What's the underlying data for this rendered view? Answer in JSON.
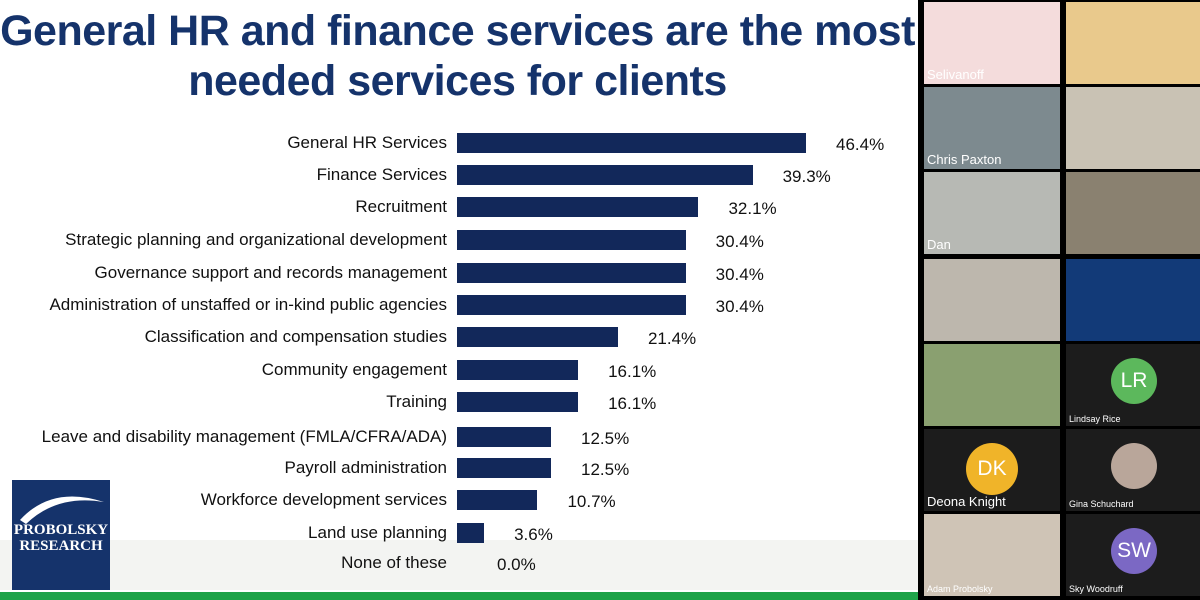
{
  "chart_data": {
    "type": "bar",
    "orientation": "horizontal",
    "title": "General HR and finance services are the most needed services for clients",
    "categories": [
      "General HR Services",
      "Finance Services",
      "Recruitment",
      "Strategic planning and organizational development",
      "Governance support and records management",
      "Administration of unstaffed or in-kind public agencies",
      "Classification and compensation studies",
      "Community engagement",
      "Training",
      "Leave and disability management (FMLA/CFRA/ADA)",
      "Payroll administration",
      "Workforce development services",
      "Land use planning",
      "None of these"
    ],
    "values": [
      46.4,
      39.3,
      32.1,
      30.4,
      30.4,
      30.4,
      21.4,
      16.1,
      16.1,
      12.5,
      12.5,
      10.7,
      3.6,
      0.0
    ],
    "value_labels": [
      "46.4%",
      "39.3%",
      "32.1%",
      "30.4%",
      "30.4%",
      "30.4%",
      "21.4%",
      "16.1%",
      "16.1%",
      "12.5%",
      "12.5%",
      "10.7%",
      "3.6%",
      "0.0%"
    ],
    "unit": "%",
    "xlim": [
      0,
      46.4
    ],
    "grid": false,
    "bar_color": "#12285a"
  },
  "logo": {
    "line1": "PROBOLSKY",
    "line2": "RESEARCH"
  },
  "participants": [
    {
      "name": "Selivanoff",
      "bg": "#f4dcdc"
    },
    {
      "name": "",
      "bg": "#e9c98c"
    },
    {
      "name": "Chris Paxton",
      "bg": "#7d8a8f"
    },
    {
      "name": "",
      "bg": "#c9c2b4"
    },
    {
      "name": "Dan",
      "bg": "#b7b9b4"
    },
    {
      "name": "",
      "bg": "#8a8170"
    },
    {
      "name": "",
      "bg": "#bdb7ad"
    },
    {
      "name": "",
      "bg": "#123a78"
    },
    {
      "name": "",
      "bg": "#8aa070"
    },
    {
      "name": "Lindsay Rice",
      "initials": "LR",
      "avatar_color": "#5cb85c"
    },
    {
      "name": "Deona Knight",
      "initials": "DK",
      "avatar_color": "#f0b429"
    },
    {
      "name": "Gina Schuchard",
      "avatar_color": "#b9a69a"
    },
    {
      "name": "Adam Probolsky",
      "bg": "#cfc4b6"
    },
    {
      "name": "Sky Woodruff",
      "initials": "SW",
      "avatar_color": "#7b68c4"
    }
  ]
}
